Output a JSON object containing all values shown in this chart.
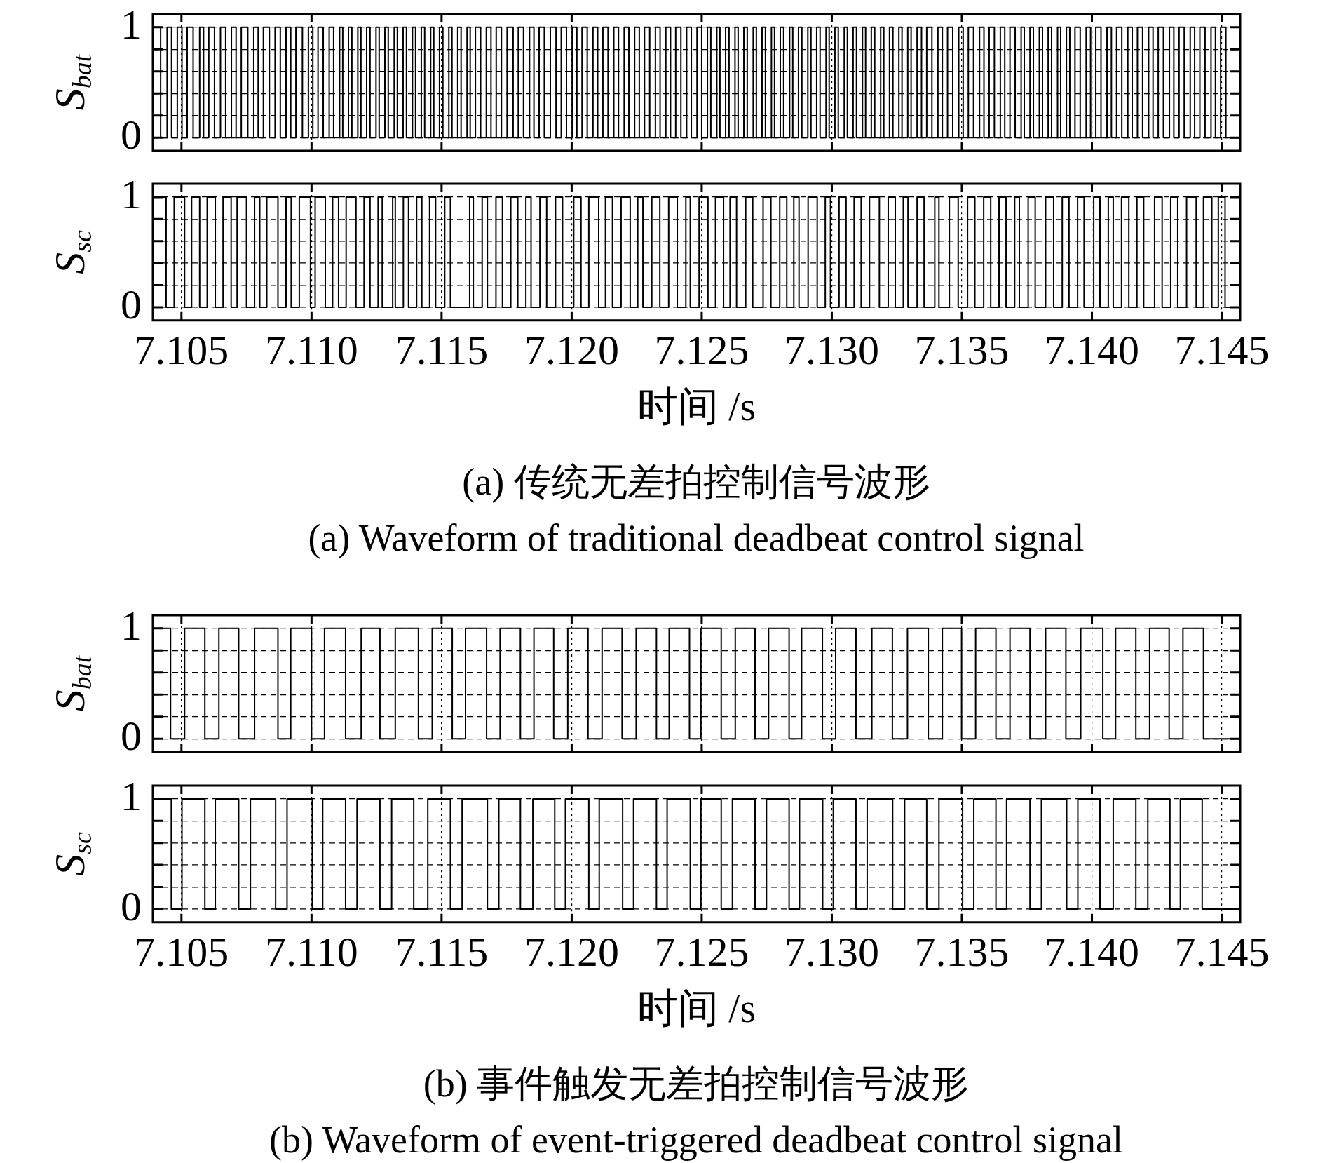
{
  "chart_data": [
    {
      "type": "step",
      "ylabel": "S$_{bat}$",
      "color": "#000000",
      "grid": true,
      "tick_labels": "y",
      "xlim": [
        7.1039,
        7.1457
      ],
      "ylim": [
        -0.12,
        1.12
      ],
      "xticks": [
        {
          "value": 7.105,
          "label": null
        },
        {
          "value": 7.11,
          "label": null
        },
        {
          "value": 7.115,
          "label": null
        },
        {
          "value": 7.12,
          "label": null
        },
        {
          "value": 7.125,
          "label": null
        },
        {
          "value": 7.13,
          "label": null
        },
        {
          "value": 7.135,
          "label": null
        },
        {
          "value": 7.14,
          "label": null
        },
        {
          "value": 7.145,
          "label": null
        }
      ],
      "yticks": [
        {
          "value": 0,
          "label": "0"
        },
        {
          "value": 0.2,
          "label": null
        },
        {
          "value": 0.4,
          "label": null
        },
        {
          "value": 0.6,
          "label": null
        },
        {
          "value": 0.8,
          "label": null
        },
        {
          "value": 1,
          "label": "1"
        }
      ],
      "x": [
        7.1039,
        7.1042,
        7.10445,
        7.10462,
        7.10484,
        7.10502,
        7.10522,
        7.10545,
        7.1057,
        7.10585,
        7.10605,
        7.10627,
        7.1065,
        7.1067,
        7.10692,
        7.1071,
        7.1073,
        7.10755,
        7.10778,
        7.10795,
        7.10815,
        7.10838,
        7.1086,
        7.1088,
        7.10902,
        7.1092,
        7.1094,
        7.10965,
        7.10988,
        7.11005,
        7.11025,
        7.11045,
        7.11068,
        7.11085,
        7.11108,
        7.1112,
        7.11142,
        7.11155,
        7.11178,
        7.1119,
        7.11212,
        7.11225,
        7.11248,
        7.1126,
        7.11282,
        7.11295,
        7.11318,
        7.1133,
        7.11352,
        7.11365,
        7.11388,
        7.114,
        7.11422,
        7.11435,
        7.11458,
        7.1147,
        7.11492,
        7.11505,
        7.11528,
        7.1154,
        7.11562,
        7.11575,
        7.11598,
        7.1161,
        7.1163,
        7.1165,
        7.11672,
        7.1169,
        7.1171,
        7.1173,
        7.11752,
        7.11775,
        7.11795,
        7.11815,
        7.11838,
        7.11855,
        7.11875,
        7.11895,
        7.11918,
        7.1194,
        7.1196,
        7.1198,
        7.12002,
        7.1202,
        7.1204,
        7.1206,
        7.12082,
        7.121,
        7.1212,
        7.1214,
        7.12162,
        7.1218,
        7.12202,
        7.1222,
        7.12242,
        7.1226,
        7.1228,
        7.123,
        7.12322,
        7.1234,
        7.12362,
        7.1238,
        7.124,
        7.1242,
        7.12442,
        7.1246,
        7.12482,
        7.125,
        7.12522,
        7.12535,
        7.12558,
        7.1257,
        7.12592,
        7.12605,
        7.12628,
        7.1264,
        7.12662,
        7.12675,
        7.12698,
        7.1271,
        7.12732,
        7.12745,
        7.12768,
        7.1278,
        7.12802,
        7.12815,
        7.12838,
        7.1285,
        7.12872,
        7.12885,
        7.12908,
        7.1292,
        7.12942,
        7.12955,
        7.12978,
        7.1299,
        7.13012,
        7.13025,
        7.13048,
        7.1306,
        7.13082,
        7.13095,
        7.13118,
        7.1313,
        7.13152,
        7.13165,
        7.13188,
        7.132,
        7.13222,
        7.13235,
        7.13258,
        7.1327,
        7.13292,
        7.13305,
        7.13328,
        7.13345,
        7.13365,
        7.13385,
        7.13408,
        7.13425,
        7.13445,
        7.13465,
        7.13488,
        7.13505,
        7.13525,
        7.13545,
        7.13568,
        7.13585,
        7.13605,
        7.13625,
        7.13648,
        7.13665,
        7.13685,
        7.13705,
        7.13728,
        7.1374,
        7.13762,
        7.13775,
        7.13798,
        7.1381,
        7.13832,
        7.13845,
        7.13868,
        7.1388,
        7.13902,
        7.13915,
        7.13935,
        7.13955,
        7.13978,
        7.13995,
        7.14015,
        7.14035,
        7.14058,
        7.14075,
        7.14095,
        7.14115,
        7.14138,
        7.14155,
        7.14175,
        7.14195,
        7.14218,
        7.14235,
        7.14255,
        7.14275,
        7.14298,
        7.14315,
        7.14335,
        7.14355,
        7.14378,
        7.14395,
        7.14415,
        7.14435,
        7.14458,
        7.14475,
        7.14495,
        7.14515,
        7.14538,
        7.1457
      ],
      "values": [
        0,
        1,
        0,
        1,
        0,
        1,
        0,
        1,
        0,
        1,
        0,
        1,
        0,
        1,
        0,
        1,
        0,
        1,
        0,
        1,
        0,
        1,
        0,
        1,
        0,
        1,
        0,
        1,
        0,
        1,
        0,
        1,
        0,
        1,
        0,
        1,
        0,
        1,
        0,
        1,
        0,
        1,
        0,
        1,
        0,
        1,
        0,
        1,
        0,
        1,
        0,
        1,
        0,
        1,
        0,
        1,
        0,
        1,
        0,
        1,
        0,
        1,
        0,
        1,
        0,
        1,
        0,
        1,
        0,
        1,
        0,
        1,
        0,
        1,
        0,
        1,
        0,
        1,
        0,
        1,
        0,
        1,
        0,
        1,
        0,
        1,
        0,
        1,
        0,
        1,
        0,
        1,
        0,
        1,
        0,
        1,
        0,
        1,
        0,
        1,
        0,
        1,
        0,
        1,
        0,
        1,
        0,
        1,
        0,
        1,
        0,
        1,
        0,
        1,
        0,
        1,
        0,
        1,
        0,
        1,
        0,
        1,
        0,
        1,
        0,
        1,
        0,
        1,
        0,
        1,
        0,
        1,
        0,
        1,
        0,
        1,
        0,
        1,
        0,
        1,
        0,
        1,
        0,
        1,
        0,
        1,
        0,
        1,
        0,
        1,
        0,
        1,
        0,
        1,
        0,
        1,
        0,
        1,
        0,
        1,
        0,
        1,
        0,
        1,
        0,
        1,
        0,
        1,
        0,
        1,
        0,
        1,
        0,
        1,
        0,
        1,
        0,
        1,
        0,
        1,
        0,
        1,
        0,
        1,
        0,
        1,
        0,
        1,
        0,
        1,
        0,
        1,
        0,
        1,
        0,
        1,
        0,
        1,
        0,
        1,
        0,
        1,
        0,
        1,
        0,
        1,
        0,
        1,
        0,
        1,
        0,
        1,
        0,
        1,
        0,
        1,
        0,
        0
      ]
    },
    {
      "type": "step",
      "ylabel": "S$_{sc}$",
      "xlabel": "时间 /s",
      "color": "#000000",
      "grid": true,
      "annotations": [
        "(a) 传统无差拍控制信号波形",
        "(a) Waveform of traditional deadbeat control signal"
      ],
      "xlim": [
        7.1039,
        7.1457
      ],
      "ylim": [
        -0.12,
        1.12
      ],
      "xticks": [
        {
          "value": 7.105,
          "label": "7.105"
        },
        {
          "value": 7.11,
          "label": "7.110"
        },
        {
          "value": 7.115,
          "label": "7.115"
        },
        {
          "value": 7.12,
          "label": "7.120"
        },
        {
          "value": 7.125,
          "label": "7.125"
        },
        {
          "value": 7.13,
          "label": "7.130"
        },
        {
          "value": 7.135,
          "label": "7.135"
        },
        {
          "value": 7.14,
          "label": "7.140"
        },
        {
          "value": 7.145,
          "label": "7.145"
        }
      ],
      "yticks": [
        {
          "value": 0,
          "label": "0"
        },
        {
          "value": 0.2,
          "label": null
        },
        {
          "value": 0.4,
          "label": null
        },
        {
          "value": 0.6,
          "label": null
        },
        {
          "value": 0.8,
          "label": null
        },
        {
          "value": 1,
          "label": "1"
        }
      ],
      "x": [
        7.1039,
        7.10441,
        7.10472,
        7.10512,
        7.10539,
        7.1057,
        7.10599,
        7.1063,
        7.1066,
        7.10691,
        7.10714,
        7.1075,
        7.10781,
        7.10801,
        7.10828,
        7.10871,
        7.10902,
        7.10922,
        7.10953,
        7.10996,
        7.11014,
        7.11053,
        7.11081,
        7.11104,
        7.11133,
        7.11171,
        7.11202,
        7.11225,
        7.11256,
        7.11272,
        7.11312,
        7.11322,
        7.11353,
        7.11373,
        7.11404,
        7.11424,
        7.11454,
        7.11477,
        7.11512,
        7.11534,
        7.11608,
        7.11622,
        7.11656,
        7.11676,
        7.11709,
        7.11734,
        7.11766,
        7.11793,
        7.11824,
        7.11844,
        7.11878,
        7.11904,
        7.11938,
        7.11965,
        7.12008,
        7.12036,
        7.12066,
        7.12104,
        7.1213,
        7.12157,
        7.1219,
        7.12225,
        7.12254,
        7.12274,
        7.12308,
        7.12339,
        7.12373,
        7.12406,
        7.12439,
        7.12456,
        7.1249,
        7.12524,
        7.12553,
        7.12584,
        7.12609,
        7.12634,
        7.12669,
        7.12696,
        7.12736,
        7.12766,
        7.128,
        7.12827,
        7.12854,
        7.12874,
        7.12909,
        7.12944,
        7.12975,
        7.12995,
        7.13028,
        7.13055,
        7.13086,
        7.13113,
        7.13145,
        7.13183,
        7.13217,
        7.13244,
        7.13275,
        7.13293,
        7.13328,
        7.13355,
        7.13396,
        7.13412,
        7.13452,
        7.13486,
        7.13522,
        7.1355,
        7.13584,
        7.13611,
        7.13643,
        7.1367,
        7.13703,
        7.13721,
        7.13755,
        7.13782,
        7.13822,
        7.13853,
        7.13886,
        7.13912,
        7.13945,
        7.1397,
        7.14007,
        7.14031,
        7.14063,
        7.14082,
        7.14114,
        7.14142,
        7.14173,
        7.14199,
        7.14241,
        7.1427,
        7.14303,
        7.1433,
        7.14364,
        7.14401,
        7.14429,
        7.14461,
        7.14486,
        7.14512,
        7.14542,
        7.1457
      ],
      "values": [
        0,
        1,
        0,
        1,
        0,
        1,
        0,
        1,
        0,
        1,
        0,
        1,
        0,
        1,
        0,
        1,
        0,
        1,
        0,
        1,
        0,
        1,
        0,
        1,
        0,
        1,
        0,
        1,
        0,
        1,
        0,
        1,
        0,
        1,
        0,
        1,
        0,
        1,
        0,
        1,
        0,
        1,
        0,
        1,
        0,
        1,
        0,
        1,
        0,
        1,
        0,
        1,
        0,
        1,
        0,
        1,
        0,
        1,
        0,
        1,
        0,
        1,
        0,
        1,
        0,
        1,
        0,
        1,
        0,
        1,
        0,
        1,
        0,
        1,
        0,
        1,
        0,
        1,
        0,
        1,
        0,
        1,
        0,
        1,
        0,
        1,
        0,
        1,
        0,
        1,
        0,
        1,
        0,
        1,
        0,
        1,
        0,
        1,
        0,
        1,
        0,
        1,
        0,
        1,
        0,
        1,
        0,
        1,
        0,
        1,
        0,
        1,
        0,
        1,
        0,
        1,
        0,
        1,
        0,
        1,
        0,
        1,
        0,
        1,
        0,
        1,
        0,
        1,
        0,
        1,
        0,
        1,
        0,
        1,
        0,
        1,
        0,
        1,
        0,
        0
      ]
    },
    {
      "type": "step",
      "ylabel": "S$_{bat}$",
      "color": "#000000",
      "grid": true,
      "tick_labels": "y",
      "xlim": [
        7.1039,
        7.1457
      ],
      "ylim": [
        -0.12,
        1.12
      ],
      "xticks": [
        {
          "value": 7.105,
          "label": null
        },
        {
          "value": 7.11,
          "label": null
        },
        {
          "value": 7.115,
          "label": null
        },
        {
          "value": 7.12,
          "label": null
        },
        {
          "value": 7.125,
          "label": null
        },
        {
          "value": 7.13,
          "label": null
        },
        {
          "value": 7.135,
          "label": null
        },
        {
          "value": 7.14,
          "label": null
        },
        {
          "value": 7.145,
          "label": null
        }
      ],
      "yticks": [
        {
          "value": 0,
          "label": "0"
        },
        {
          "value": 0.2,
          "label": null
        },
        {
          "value": 0.4,
          "label": null
        },
        {
          "value": 0.6,
          "label": null
        },
        {
          "value": 0.8,
          "label": null
        },
        {
          "value": 1,
          "label": "1"
        }
      ],
      "x": [
        7.1039,
        7.10458,
        7.10512,
        7.1059,
        7.10644,
        7.1072,
        7.10781,
        7.10871,
        7.1092,
        7.11,
        7.1105,
        7.11131,
        7.11191,
        7.11263,
        7.11322,
        7.11411,
        7.11464,
        7.11541,
        7.11592,
        7.11673,
        7.11725,
        7.11803,
        7.11855,
        7.11931,
        7.11985,
        7.12063,
        7.12117,
        7.12194,
        7.12248,
        7.12326,
        7.12375,
        7.12453,
        7.12497,
        7.12575,
        7.12629,
        7.12705,
        7.12757,
        7.12836,
        7.12884,
        7.12964,
        7.13015,
        7.13093,
        7.13154,
        7.13233,
        7.13291,
        7.13371,
        7.13425,
        7.13499,
        7.13553,
        7.13631,
        7.13685,
        7.13762,
        7.13822,
        7.139,
        7.13957,
        7.14042,
        7.14091,
        7.14169,
        7.14222,
        7.14297,
        7.1435,
        7.14429,
        7.14481,
        7.1457
      ],
      "values": [
        0,
        1,
        0,
        1,
        0,
        1,
        0,
        1,
        0,
        1,
        0,
        1,
        0,
        1,
        0,
        1,
        0,
        1,
        0,
        1,
        0,
        1,
        0,
        1,
        0,
        1,
        0,
        1,
        0,
        1,
        0,
        1,
        0,
        1,
        0,
        1,
        0,
        1,
        0,
        1,
        0,
        1,
        0,
        1,
        0,
        1,
        0,
        1,
        0,
        1,
        0,
        1,
        0,
        1,
        0,
        1,
        0,
        1,
        0,
        1,
        0,
        1,
        0,
        0
      ]
    },
    {
      "type": "step",
      "ylabel": "S$_{sc}$",
      "xlabel": "时间 /s",
      "color": "#000000",
      "grid": true,
      "annotations": [
        "(b) 事件触发无差拍控制信号波形",
        "(b) Waveform of event-triggered deadbeat control signal"
      ],
      "xlim": [
        7.1039,
        7.1457
      ],
      "ylim": [
        -0.12,
        1.12
      ],
      "xticks": [
        {
          "value": 7.105,
          "label": "7.105"
        },
        {
          "value": 7.11,
          "label": "7.110"
        },
        {
          "value": 7.115,
          "label": "7.115"
        },
        {
          "value": 7.12,
          "label": "7.120"
        },
        {
          "value": 7.125,
          "label": "7.125"
        },
        {
          "value": 7.13,
          "label": "7.130"
        },
        {
          "value": 7.135,
          "label": "7.135"
        },
        {
          "value": 7.14,
          "label": "7.140"
        },
        {
          "value": 7.145,
          "label": "7.145"
        }
      ],
      "yticks": [
        {
          "value": 0,
          "label": "0"
        },
        {
          "value": 0.2,
          "label": null
        },
        {
          "value": 0.4,
          "label": null
        },
        {
          "value": 0.6,
          "label": null
        },
        {
          "value": 0.8,
          "label": null
        },
        {
          "value": 1,
          "label": "1"
        }
      ],
      "x": [
        7.1039,
        7.10461,
        7.10502,
        7.1059,
        7.1063,
        7.1072,
        7.10765,
        7.10862,
        7.10906,
        7.11003,
        7.11043,
        7.11131,
        7.11175,
        7.11263,
        7.11308,
        7.11393,
        7.11447,
        7.11534,
        7.11579,
        7.11676,
        7.1172,
        7.11803,
        7.11851,
        7.11935,
        7.11976,
        7.12066,
        7.12106,
        7.12196,
        7.12238,
        7.12326,
        7.12367,
        7.12456,
        7.12497,
        7.12575,
        7.12618,
        7.12705,
        7.12749,
        7.12836,
        7.12876,
        7.12965,
        7.13006,
        7.13093,
        7.13136,
        7.13234,
        7.1328,
        7.13365,
        7.13412,
        7.13503,
        7.13546,
        7.13631,
        7.13672,
        7.13762,
        7.13806,
        7.13903,
        7.13946,
        7.14031,
        7.14082,
        7.14169,
        7.14215,
        7.143,
        7.1434,
        7.14424,
        7.14472,
        7.1457
      ],
      "values": [
        0,
        1,
        0,
        1,
        0,
        1,
        0,
        1,
        0,
        1,
        0,
        1,
        0,
        1,
        0,
        1,
        0,
        1,
        0,
        1,
        0,
        1,
        0,
        1,
        0,
        1,
        0,
        1,
        0,
        1,
        0,
        1,
        0,
        1,
        0,
        1,
        0,
        1,
        0,
        1,
        0,
        1,
        0,
        1,
        0,
        1,
        0,
        1,
        0,
        1,
        0,
        1,
        0,
        1,
        0,
        1,
        0,
        1,
        0,
        1,
        0,
        1,
        0,
        0
      ]
    }
  ]
}
